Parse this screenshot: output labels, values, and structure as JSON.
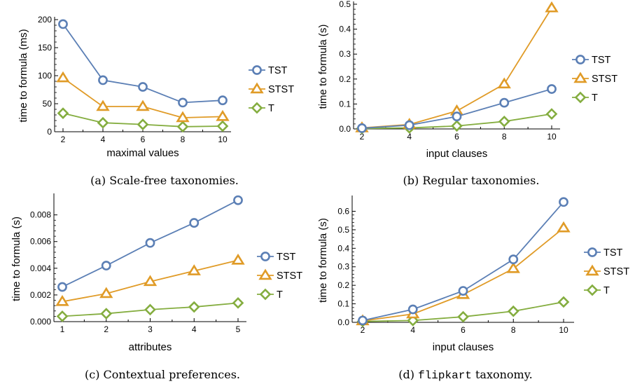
{
  "colors": {
    "TST": "#5b7fb5",
    "STST": "#e09b27",
    "T": "#84ad3f",
    "axis": "#000000"
  },
  "legend": [
    {
      "name": "TST",
      "marker": "circle",
      "color_key": "TST"
    },
    {
      "name": "STST",
      "marker": "triangle",
      "color_key": "STST"
    },
    {
      "name": "T",
      "marker": "diamond",
      "color_key": "T"
    }
  ],
  "chart_data": [
    {
      "id": "a",
      "type": "line",
      "caption": "(a) Scale-free taxonomies.",
      "xlabel": "maximal values",
      "ylabel": "time to formula (ms)",
      "x": [
        2,
        4,
        6,
        8,
        10
      ],
      "xticks": [
        "2",
        "4",
        "6",
        "8",
        "10"
      ],
      "yticks": [
        "0",
        "50",
        "100",
        "150",
        "200"
      ],
      "ylim": [
        0,
        200
      ],
      "series": [
        {
          "name": "TST",
          "values": [
            192,
            92,
            80,
            52,
            56
          ]
        },
        {
          "name": "STST",
          "values": [
            96,
            45,
            45,
            25,
            27
          ]
        },
        {
          "name": "T",
          "values": [
            33,
            16,
            13,
            9,
            10
          ]
        }
      ]
    },
    {
      "id": "b",
      "type": "line",
      "caption": "(b) Regular taxonomies.",
      "xlabel": "input clauses",
      "ylabel": "time to formula (s)",
      "x": [
        2,
        4,
        6,
        8,
        10
      ],
      "xticks": [
        "2",
        "4",
        "6",
        "8",
        "10"
      ],
      "yticks": [
        "0.0",
        "0.1",
        "0.2",
        "0.3",
        "0.4",
        "0.5"
      ],
      "ylim": [
        0,
        0.5
      ],
      "series": [
        {
          "name": "TST",
          "values": [
            0.003,
            0.015,
            0.05,
            0.105,
            0.16
          ]
        },
        {
          "name": "STST",
          "values": [
            0.004,
            0.018,
            0.072,
            0.18,
            0.485
          ]
        },
        {
          "name": "T",
          "values": [
            0.002,
            0.004,
            0.012,
            0.03,
            0.06
          ]
        }
      ]
    },
    {
      "id": "c",
      "type": "line",
      "caption": "(c) Contextual preferences.",
      "xlabel": "attributes",
      "ylabel": "time to formula (s)",
      "x": [
        1,
        2,
        3,
        4,
        5
      ],
      "xticks": [
        "1",
        "2",
        "3",
        "4",
        "5"
      ],
      "yticks": [
        "0.000",
        "0.002",
        "0.004",
        "0.006",
        "0.008"
      ],
      "ylim": [
        0,
        0.0094
      ],
      "series": [
        {
          "name": "TST",
          "values": [
            0.0026,
            0.0042,
            0.0059,
            0.0074,
            0.0091
          ]
        },
        {
          "name": "STST",
          "values": [
            0.0015,
            0.0021,
            0.003,
            0.0038,
            0.0046
          ]
        },
        {
          "name": "T",
          "values": [
            0.0004,
            0.0006,
            0.0009,
            0.0011,
            0.0014
          ]
        }
      ]
    },
    {
      "id": "d",
      "type": "line",
      "caption_mono": "flipkart",
      "caption_prefix": "(d) ",
      "caption_suffix": " taxonomy.",
      "xlabel": "input clauses",
      "ylabel": "time to formula (s)",
      "x": [
        2,
        4,
        6,
        8,
        10
      ],
      "xticks": [
        "2",
        "4",
        "6",
        "8",
        "10"
      ],
      "yticks": [
        "0.0",
        "0.1",
        "0.2",
        "0.3",
        "0.4",
        "0.5",
        "0.6"
      ],
      "ylim": [
        0,
        0.67
      ],
      "series": [
        {
          "name": "TST",
          "values": [
            0.01,
            0.07,
            0.17,
            0.34,
            0.65
          ]
        },
        {
          "name": "STST",
          "values": [
            0.008,
            0.045,
            0.15,
            0.29,
            0.51
          ]
        },
        {
          "name": "T",
          "values": [
            0.005,
            0.01,
            0.03,
            0.06,
            0.11
          ]
        }
      ]
    }
  ]
}
